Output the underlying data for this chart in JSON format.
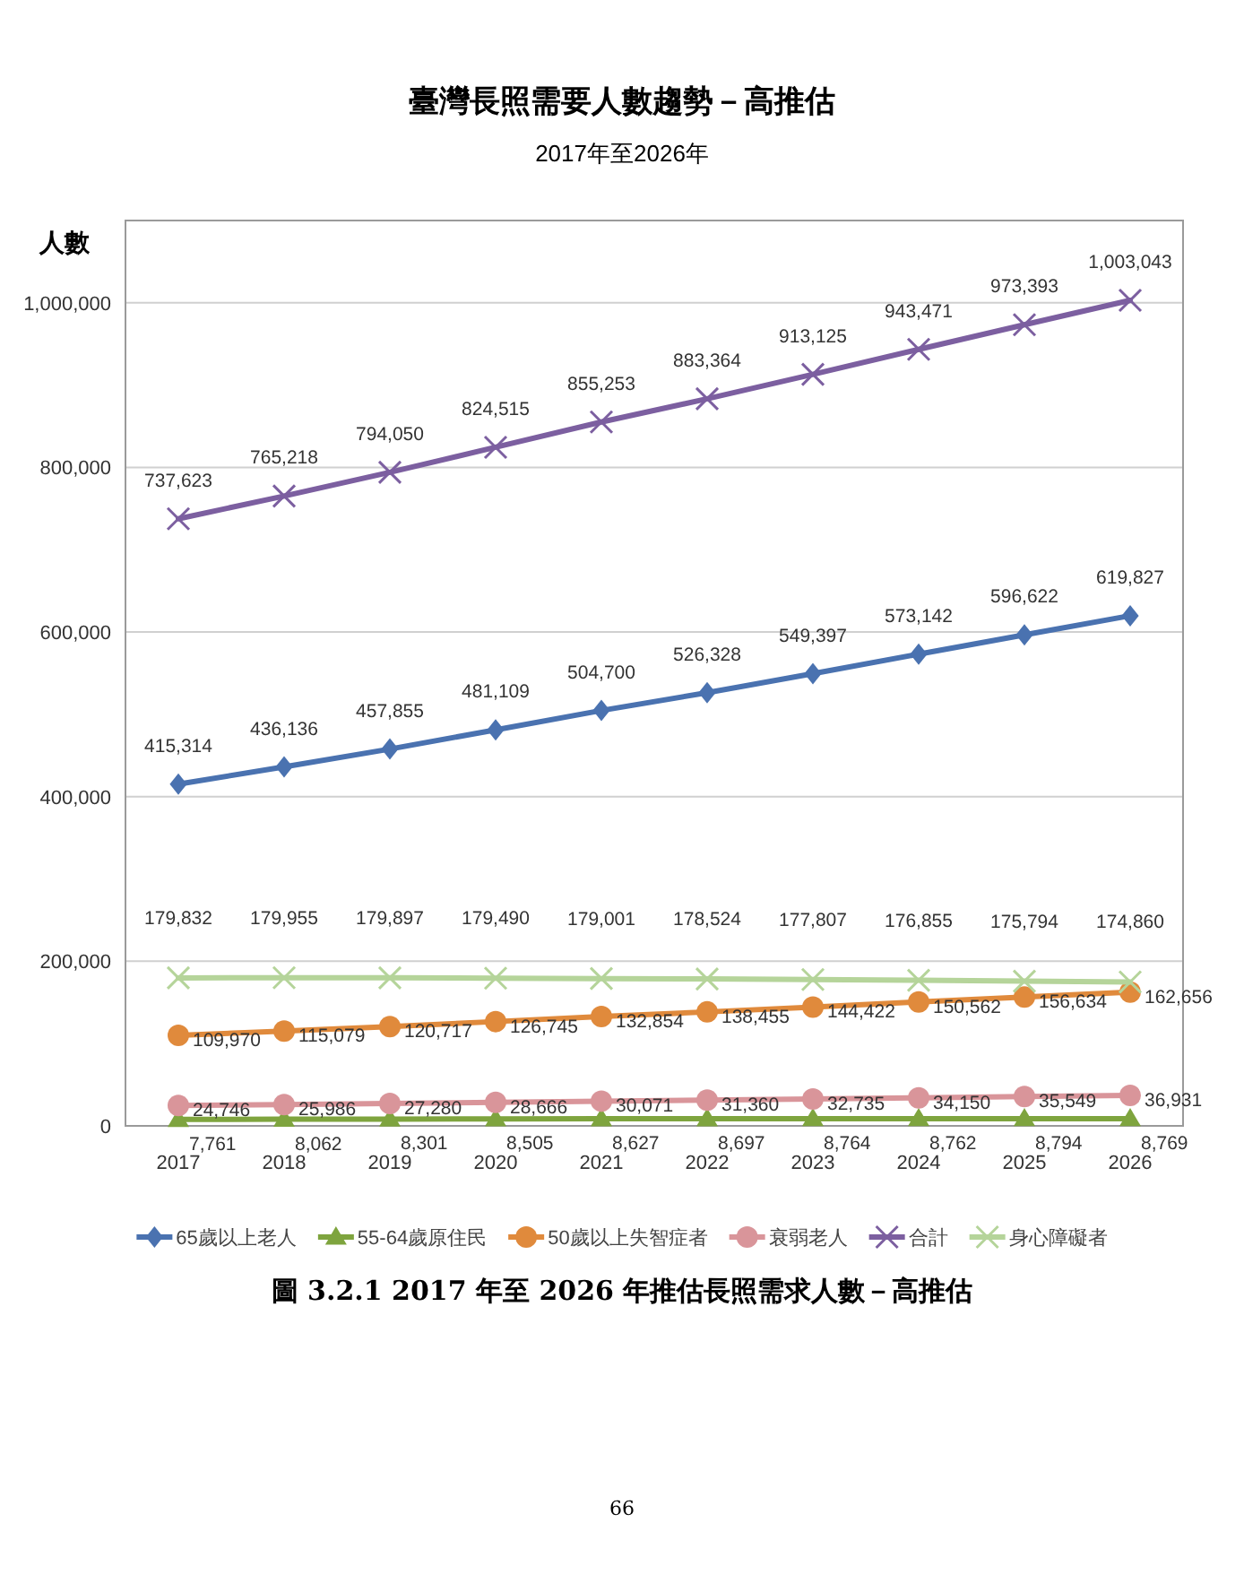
{
  "chart_data": {
    "type": "line",
    "title": "臺灣長照需要人數趨勢－高推估",
    "subtitle": "2017年至2026年",
    "ylabel": "人數",
    "categories": [
      "2017",
      "2018",
      "2019",
      "2020",
      "2021",
      "2022",
      "2023",
      "2024",
      "2025",
      "2026"
    ],
    "ylim": [
      0,
      1100000
    ],
    "yticks": [
      {
        "value": 0,
        "label": "0"
      },
      {
        "value": 200000,
        "label": "200,000"
      },
      {
        "value": 400000,
        "label": "400,000"
      },
      {
        "value": 600000,
        "label": "600,000"
      },
      {
        "value": 800000,
        "label": "800,000"
      },
      {
        "value": 1000000,
        "label": "1,000,000"
      }
    ],
    "grid": "y",
    "legend": "bottom",
    "series": [
      {
        "name": "65歲以上老人",
        "color": "#4a72b0",
        "marker": "diamond",
        "values": [
          415314,
          436136,
          457855,
          481109,
          504700,
          526328,
          549397,
          573142,
          596622,
          619827
        ],
        "value_labels": [
          "415,314",
          "436,136",
          "457,855",
          "481,109",
          "504,700",
          "526,328",
          "549,397",
          "573,142",
          "596,622",
          "619,827"
        ]
      },
      {
        "name": "55-64歲原住民",
        "color": "#7ea43e",
        "marker": "triangle",
        "values": [
          7761,
          8062,
          8301,
          8505,
          8627,
          8697,
          8764,
          8762,
          8794,
          8769
        ],
        "value_labels": [
          "7,761",
          "8,062",
          "8,301",
          "8,505",
          "8,627",
          "8,697",
          "8,764",
          "8,762",
          "8,794",
          "8,769"
        ]
      },
      {
        "name": "50歲以上失智症者",
        "color": "#e08a3c",
        "marker": "circle",
        "values": [
          109970,
          115079,
          120717,
          126745,
          132854,
          138455,
          144422,
          150562,
          156634,
          162656
        ],
        "value_labels": [
          "109,970",
          "115,079",
          "120,717",
          "126,745",
          "132,854",
          "138,455",
          "144,422",
          "150,562",
          "156,634",
          "162,656"
        ]
      },
      {
        "name": "衰弱老人",
        "color": "#d9959a",
        "marker": "circle",
        "values": [
          24746,
          25986,
          27280,
          28666,
          30071,
          31360,
          32735,
          34150,
          35549,
          36931
        ],
        "value_labels": [
          "24,746",
          "25,986",
          "27,280",
          "28,666",
          "30,071",
          "31,360",
          "32,735",
          "34,150",
          "35,549",
          "36,931"
        ]
      },
      {
        "name": "合計",
        "color": "#7c5fa0",
        "marker": "cross",
        "values": [
          737623,
          765218,
          794050,
          824515,
          855253,
          883364,
          913125,
          943471,
          973393,
          1003043
        ],
        "value_labels": [
          "737,623",
          "765,218",
          "794,050",
          "824,515",
          "855,253",
          "883,364",
          "913,125",
          "943,471",
          "973,393",
          "1,003,043"
        ]
      },
      {
        "name": "身心障礙者",
        "color": "#b5d49a",
        "marker": "cross",
        "values": [
          179832,
          179955,
          179897,
          179490,
          179001,
          178524,
          177807,
          176855,
          175794,
          174860
        ],
        "value_labels": [
          "179,832",
          "179,955",
          "179,897",
          "179,490",
          "179,001",
          "178,524",
          "177,807",
          "176,855",
          "175,794",
          "174,860"
        ]
      }
    ],
    "annotations": [
      "圖 3.2.1 2017 年至 2026 年推估長照需求人數－高推估",
      "66"
    ]
  }
}
